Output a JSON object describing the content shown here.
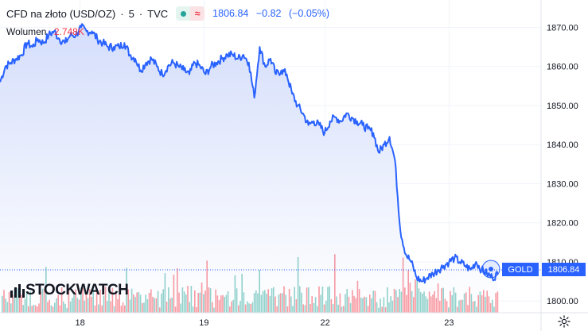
{
  "legend": {
    "symbol": "CFD na złoto (USD/OZ)",
    "interval": "5",
    "source": "TVC",
    "last": "1806.84",
    "change": "−0.82",
    "change_pct": "(−0.05%)"
  },
  "volume": {
    "label": "Wolumen",
    "value": "2.748K"
  },
  "price_badges": {
    "symbol": "GOLD",
    "price": "1806.84"
  },
  "logo": {
    "text": "STOCKWATCH"
  },
  "icons": {
    "settings": "gear-icon",
    "indicator_dot": "status-dot-icon",
    "indicator_wave": "wave-icon",
    "logo_mark": "bar-chart-icon"
  },
  "colors": {
    "line": "#2962ff",
    "area_top": "#d2dcfb",
    "area_bottom": "#ffffff",
    "vol_up": "#26a69a",
    "vol_down": "#f23645",
    "grid": "#f0f3fa",
    "badge": "#2962ff"
  },
  "chart_data": {
    "type": "area",
    "title": "CFD na złoto (USD/OZ)",
    "ylabel": "",
    "xlabel": "",
    "ylim": [
      1797,
      1877
    ],
    "y_ticks": [
      1800,
      1810,
      1820,
      1830,
      1840,
      1850,
      1860,
      1870
    ],
    "y_tick_labels": [
      "1800.00",
      "1810.00",
      "1820.00",
      "1830.00",
      "1840.00",
      "1850.00",
      "1860.00",
      "1870.00"
    ],
    "x_range": [
      0,
      100
    ],
    "x_ticks": [
      {
        "x": 14.8,
        "label": "18"
      },
      {
        "x": 37.7,
        "label": "19"
      },
      {
        "x": 60.1,
        "label": "22"
      },
      {
        "x": 83.0,
        "label": "23"
      }
    ],
    "series": [
      {
        "x": [
          0,
          1,
          2,
          3,
          4,
          5,
          6,
          7,
          8,
          9,
          10,
          11,
          12,
          13,
          14,
          15,
          16,
          17,
          18,
          19,
          20,
          21,
          22,
          23,
          24,
          25,
          26,
          27,
          28,
          29,
          30,
          31,
          32,
          33,
          34,
          35,
          36,
          37,
          38,
          39,
          40,
          41,
          42,
          43,
          44,
          45,
          46,
          47,
          48,
          49,
          50,
          51,
          52,
          53,
          54,
          55,
          56,
          57,
          58,
          59,
          60,
          61,
          62,
          63,
          64,
          65,
          66,
          67,
          68,
          69,
          70,
          71,
          72,
          73,
          74,
          75,
          76,
          77,
          78,
          79,
          80,
          81,
          82,
          83,
          84,
          85,
          86,
          87,
          88,
          89,
          90,
          91,
          92
        ],
        "y": [
          1856,
          1860,
          1861,
          1862,
          1863,
          1866,
          1865,
          1867,
          1866,
          1868,
          1869,
          1867,
          1866,
          1868,
          1868,
          1870,
          1869,
          1869,
          1867,
          1866,
          1865,
          1865,
          1865,
          1866,
          1863,
          1862,
          1859,
          1861,
          1862,
          1860,
          1858,
          1860,
          1861,
          1860,
          1859,
          1858,
          1861,
          1860,
          1858,
          1860,
          1861,
          1862,
          1863,
          1863,
          1862,
          1863,
          1861,
          1852,
          1865,
          1860,
          1862,
          1858,
          1859,
          1858,
          1853,
          1850,
          1848,
          1845,
          1846,
          1845,
          1843,
          1846,
          1847,
          1846,
          1848,
          1847,
          1846,
          1845,
          1844,
          1843,
          1838,
          1840,
          1842,
          1836,
          1818,
          1812,
          1810,
          1806,
          1805,
          1806,
          1807,
          1808,
          1809,
          1810,
          1811,
          1810,
          1809,
          1808,
          1810,
          1808,
          1807,
          1806,
          1806.84
        ]
      }
    ],
    "volume": {
      "label": "Wolumen",
      "last": "2.748K"
    }
  }
}
